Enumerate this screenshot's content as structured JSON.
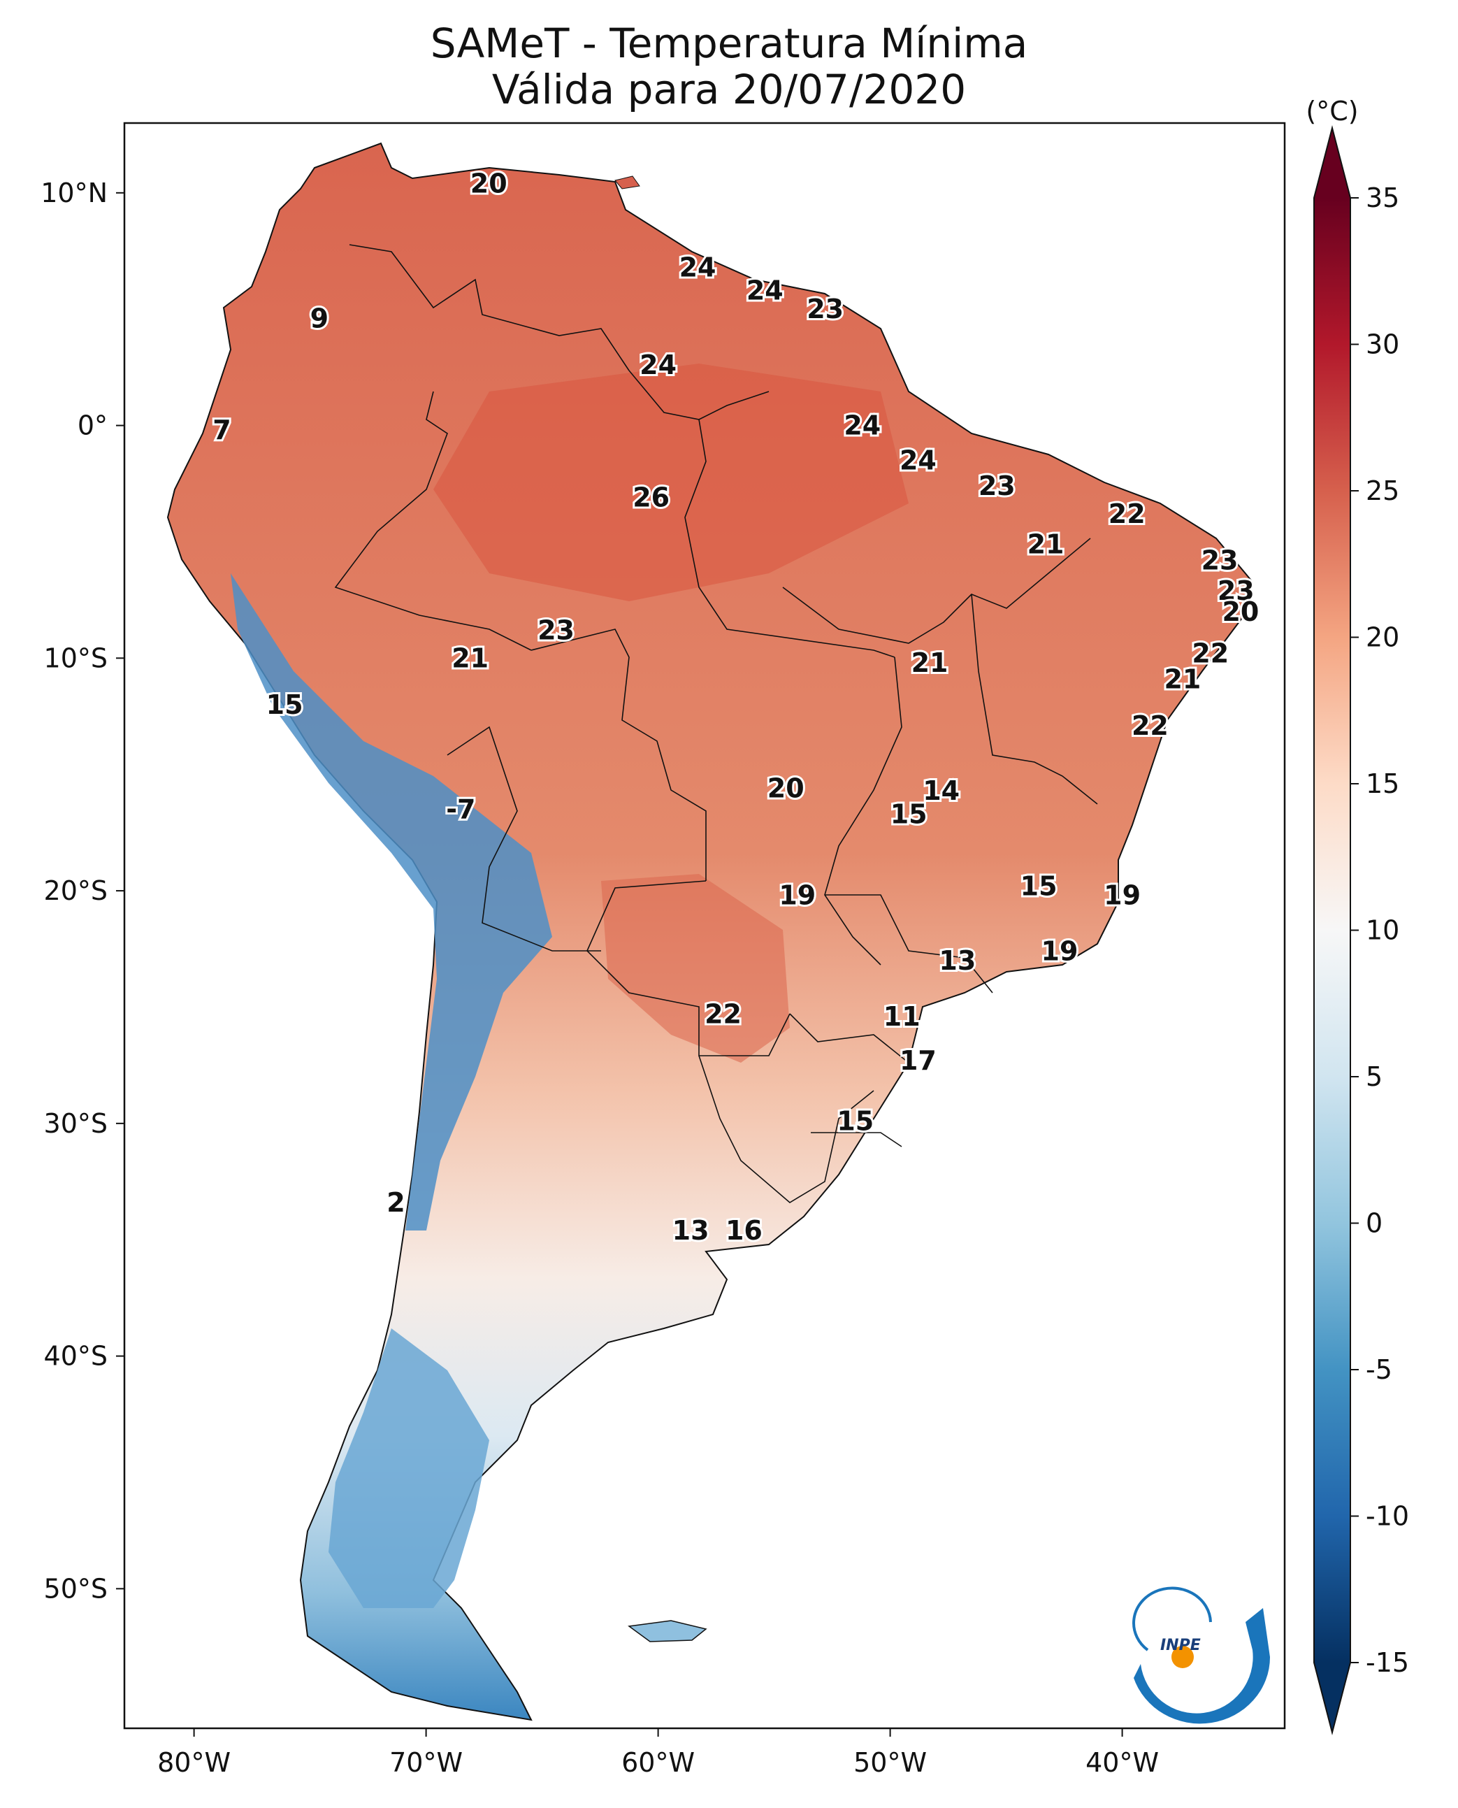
{
  "title_line1": "SAMeT - Temperatura Mínima",
  "title_line2": "Válida para 20/07/2020",
  "colorbar": {
    "unit": "(°C)",
    "min": -15,
    "max": 35,
    "ticks": [
      "35",
      "30",
      "25",
      "20",
      "15",
      "10",
      "5",
      "0",
      "-5",
      "-10",
      "-15"
    ],
    "colors": [
      "#053061",
      "#2166ac",
      "#4393c3",
      "#92c5de",
      "#d1e5f0",
      "#f7f7f7",
      "#fddbc7",
      "#f4a582",
      "#d6604d",
      "#b2182b",
      "#67001f"
    ]
  },
  "axes": {
    "lon_labels": [
      "80°W",
      "70°W",
      "60°W",
      "50°W",
      "40°W"
    ],
    "lat_labels": [
      "10°N",
      "0°",
      "10°S",
      "20°S",
      "30°S",
      "40°S",
      "50°S"
    ],
    "lon_range": [
      -83,
      -33
    ],
    "lat_range": [
      -56,
      13
    ]
  },
  "logo_text": "INPE",
  "station_values": [
    {
      "text": "20",
      "lon": -67.3,
      "lat": 10.4
    },
    {
      "text": "9",
      "lon": -74.6,
      "lat": 4.6
    },
    {
      "text": "7",
      "lon": -78.8,
      "lat": -0.2
    },
    {
      "text": "24",
      "lon": -58.3,
      "lat": 6.8
    },
    {
      "text": "24",
      "lon": -55.4,
      "lat": 5.8
    },
    {
      "text": "23",
      "lon": -52.8,
      "lat": 5.0
    },
    {
      "text": "24",
      "lon": -60.0,
      "lat": 2.6
    },
    {
      "text": "24",
      "lon": -51.2,
      "lat": 0.0
    },
    {
      "text": "24",
      "lon": -48.8,
      "lat": -1.5
    },
    {
      "text": "23",
      "lon": -45.4,
      "lat": -2.6
    },
    {
      "text": "22",
      "lon": -39.8,
      "lat": -3.8
    },
    {
      "text": "21",
      "lon": -43.3,
      "lat": -5.1
    },
    {
      "text": "23",
      "lon": -35.8,
      "lat": -5.8
    },
    {
      "text": "23",
      "lon": -35.1,
      "lat": -7.1
    },
    {
      "text": "20",
      "lon": -34.9,
      "lat": -8.0
    },
    {
      "text": "26",
      "lon": -60.3,
      "lat": -3.1
    },
    {
      "text": "23",
      "lon": -64.4,
      "lat": -8.8
    },
    {
      "text": "21",
      "lon": -68.1,
      "lat": -10.0
    },
    {
      "text": "21",
      "lon": -48.3,
      "lat": -10.2
    },
    {
      "text": "22",
      "lon": -36.2,
      "lat": -9.8
    },
    {
      "text": "21",
      "lon": -37.4,
      "lat": -10.9
    },
    {
      "text": "22",
      "lon": -38.8,
      "lat": -12.9
    },
    {
      "text": "15",
      "lon": -76.1,
      "lat": -12.0
    },
    {
      "text": "20",
      "lon": -54.5,
      "lat": -15.6
    },
    {
      "text": "14",
      "lon": -47.8,
      "lat": -15.7
    },
    {
      "text": "15",
      "lon": -49.2,
      "lat": -16.7
    },
    {
      "text": "-7",
      "lon": -68.5,
      "lat": -16.5
    },
    {
      "text": "15",
      "lon": -43.6,
      "lat": -19.8
    },
    {
      "text": "19",
      "lon": -40.0,
      "lat": -20.2
    },
    {
      "text": "19",
      "lon": -54.0,
      "lat": -20.2
    },
    {
      "text": "19",
      "lon": -42.7,
      "lat": -22.6
    },
    {
      "text": "13",
      "lon": -47.1,
      "lat": -23.0
    },
    {
      "text": "22",
      "lon": -57.2,
      "lat": -25.3
    },
    {
      "text": "11",
      "lon": -49.5,
      "lat": -25.4
    },
    {
      "text": "17",
      "lon": -48.8,
      "lat": -27.3
    },
    {
      "text": "15",
      "lon": -51.5,
      "lat": -29.9
    },
    {
      "text": "2",
      "lon": -71.3,
      "lat": -33.4
    },
    {
      "text": "13",
      "lon": -58.6,
      "lat": -34.6
    },
    {
      "text": "16",
      "lon": -56.3,
      "lat": -34.6
    }
  ]
}
